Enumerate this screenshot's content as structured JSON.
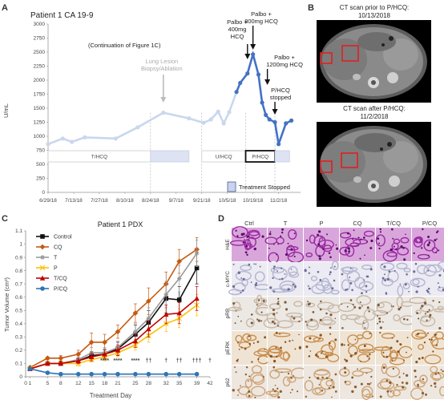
{
  "panels": {
    "A": "A",
    "B": "B",
    "C": "C",
    "D": "D"
  },
  "chart_data": [
    {
      "type": "line",
      "title": "Patient 1 CA 19-9",
      "ylabel": "U/mL",
      "ylim": [
        0,
        3000
      ],
      "yticks": [
        "0",
        "250",
        "500",
        "750",
        "1000",
        "1250",
        "1500",
        "1750",
        "2000",
        "2250",
        "2500",
        "2750",
        "3000"
      ],
      "xticks": [
        "6/29/18",
        "7/13/18",
        "7/27/18",
        "8/10/18",
        "8/24/18",
        "9/7/18",
        "9/21/18",
        "10/5/18",
        "10/19/18",
        "11/2/18"
      ],
      "subtitle": "(Continuation of Figure 1C)",
      "series": [
        {
          "color_early": "#c9d7ee",
          "color_late": "#4472c4",
          "points": [
            [
              "6/29/18",
              860
            ],
            [
              "7/7/18",
              960
            ],
            [
              "7/12/18",
              900
            ],
            [
              "7/19/18",
              980
            ],
            [
              "8/5/18",
              960
            ],
            [
              "8/17/18",
              1160
            ],
            [
              "8/31/18",
              1420
            ],
            [
              "9/14/18",
              1320
            ],
            [
              "9/22/18",
              1240
            ],
            [
              "9/26/18",
              1300
            ],
            [
              "9/30/18",
              1440
            ],
            [
              "10/3/18",
              1230
            ],
            [
              "10/6/18",
              1430
            ],
            [
              "10/10/18",
              1790
            ],
            [
              "10/12/18",
              1950
            ],
            [
              "10/16/18",
              2120
            ],
            [
              "10/19/18",
              2460
            ],
            [
              "10/22/18",
              2100
            ],
            [
              "10/24/18",
              1600
            ],
            [
              "10/26/18",
              1380
            ],
            [
              "10/28/18",
              1300
            ],
            [
              "10/31/18",
              1250
            ],
            [
              "11/2/18",
              860
            ],
            [
              "11/6/18",
              1230
            ],
            [
              "11/9/18",
              1280
            ]
          ]
        }
      ],
      "annotations": [
        {
          "text": "Lung Lesion Biopsy/Ablation",
          "lines": [
            "Lung Lesion",
            "Biopsy/Ablation"
          ],
          "x": "8/31/18"
        },
        {
          "text": "Palbo + 400mg HCQ",
          "lines": [
            "Palbo +",
            "400mg",
            "HCQ"
          ],
          "x": "10/16/18"
        },
        {
          "text": "Palbo + 800mg HCQ",
          "lines": [
            "Palbo +",
            "800mg HCQ"
          ],
          "x": "10/19/18"
        },
        {
          "text": "Palbo + 1200mg HCQ",
          "lines": [
            "Palbo +",
            "1200mg HCQ"
          ],
          "x": "10/26/18"
        },
        {
          "text": "P/HCQ stopped",
          "lines": [
            "P/HCQ",
            "stopped"
          ],
          "x": "10/31/18"
        }
      ],
      "treatment_bars": [
        {
          "label": "T/HCQ",
          "from": "6/29/18",
          "to": "8/24/18",
          "style": "empty"
        },
        {
          "label": "",
          "from": "8/24/18",
          "to": "9/14/18",
          "style": "stopped"
        },
        {
          "label": "U/HCQ",
          "from": "9/21/18",
          "to": "10/15/18",
          "style": "empty"
        },
        {
          "label": "P/HCQ",
          "from": "10/15/18",
          "to": "10/31/18",
          "style": "active"
        },
        {
          "label": "",
          "from": "10/31/18",
          "to": "11/8/18",
          "style": "stopped"
        }
      ],
      "legend": {
        "label": "Treatment Stopped",
        "placement": "bottom-right"
      }
    },
    {
      "type": "line",
      "title": "Patient 1 PDX",
      "xlabel": "Treatment Day",
      "ylabel": "Tumor Volume (cm³)",
      "ylim": [
        0,
        1.1
      ],
      "xlim": [
        0,
        42
      ],
      "yticks": [
        "0",
        "0.1",
        "0.2",
        "0.3",
        "0.4",
        "0.5",
        "0.6",
        "0.7",
        "0.8",
        "0.9",
        "1",
        "1.1"
      ],
      "xticks": [
        "0",
        "1",
        "5",
        "8",
        "12",
        "15",
        "18",
        "21",
        "25",
        "28",
        "32",
        "35",
        "39",
        "42"
      ],
      "days": [
        1,
        5,
        8,
        12,
        15,
        18,
        21,
        25,
        28,
        32,
        35,
        39
      ],
      "legend_placement": "top-left",
      "series": [
        {
          "name": "Control",
          "color": "#111111",
          "marker": "square",
          "values": [
            0.06,
            0.1,
            0.1,
            0.12,
            0.16,
            0.17,
            0.21,
            0.32,
            0.41,
            0.59,
            0.58,
            0.82
          ],
          "err": [
            0.01,
            0.01,
            0.01,
            0.02,
            0.03,
            0.04,
            0.05,
            0.07,
            0.09,
            0.11,
            0.1,
            0.12
          ]
        },
        {
          "name": "CQ",
          "color": "#c55a11",
          "marker": "diamond",
          "values": [
            0.07,
            0.14,
            0.14,
            0.17,
            0.26,
            0.26,
            0.34,
            0.48,
            0.57,
            0.7,
            0.87,
            0.96
          ],
          "err": [
            0.01,
            0.01,
            0.02,
            0.03,
            0.07,
            0.06,
            0.05,
            0.07,
            0.1,
            0.09,
            0.09,
            0.09
          ]
        },
        {
          "name": "T",
          "color": "#999999",
          "marker": "star",
          "values": [
            0.06,
            0.1,
            0.1,
            0.13,
            0.18,
            0.18,
            0.22,
            0.34,
            0.44,
            0.62,
            0.74,
            0.93
          ],
          "err": [
            0.01,
            0.01,
            0.01,
            0.02,
            0.04,
            0.04,
            0.05,
            0.06,
            0.08,
            0.1,
            0.1,
            0.1
          ]
        },
        {
          "name": "P",
          "color": "#ffc000",
          "marker": "x",
          "values": [
            0.06,
            0.1,
            0.1,
            0.1,
            0.13,
            0.15,
            0.18,
            0.24,
            0.31,
            0.4,
            0.44,
            0.54
          ],
          "err": [
            0.01,
            0.01,
            0.01,
            0.02,
            0.02,
            0.03,
            0.03,
            0.04,
            0.05,
            0.06,
            0.07,
            0.08
          ]
        },
        {
          "name": "T/CQ",
          "color": "#c00000",
          "marker": "triangle",
          "values": [
            0.06,
            0.1,
            0.1,
            0.12,
            0.15,
            0.17,
            0.2,
            0.27,
            0.36,
            0.47,
            0.48,
            0.59
          ],
          "err": [
            0.01,
            0.01,
            0.01,
            0.02,
            0.03,
            0.03,
            0.04,
            0.05,
            0.06,
            0.07,
            0.08,
            0.09
          ]
        },
        {
          "name": "P/CQ",
          "color": "#2e75b6",
          "marker": "circle",
          "values": [
            0.06,
            0.03,
            0.02,
            0.02,
            0.02,
            0.02,
            0.02,
            0.02,
            0.02,
            0.02,
            0.02,
            0.02
          ],
          "err": [
            0.01,
            0.01,
            0.005,
            0.005,
            0.005,
            0.005,
            0.005,
            0.005,
            0.005,
            0.005,
            0.005,
            0.005
          ]
        }
      ],
      "significance": [
        {
          "day": 18,
          "text": "****"
        },
        {
          "day": 21,
          "text": "****"
        },
        {
          "day": 25,
          "text": "****"
        },
        {
          "day": 28,
          "text": "††"
        },
        {
          "day": 32,
          "text": "†"
        },
        {
          "day": 35,
          "text": "††"
        },
        {
          "day": 39,
          "text": "†††"
        },
        {
          "day": 42,
          "text": "†"
        }
      ]
    }
  ],
  "ct": {
    "before_label_1": "CT scan prior to P/HCQ:",
    "before_label_2": "10/13/2018",
    "after_label_1": "CT scan after P/HCQ:",
    "after_label_2": "11/2/2018"
  },
  "histology": {
    "columns": [
      "Ctrl",
      "T",
      "P",
      "CQ",
      "T/CQ",
      "P/CQ"
    ],
    "rows": [
      "H&E",
      "c-MYC",
      "pRB",
      "pERK",
      "p62"
    ]
  }
}
